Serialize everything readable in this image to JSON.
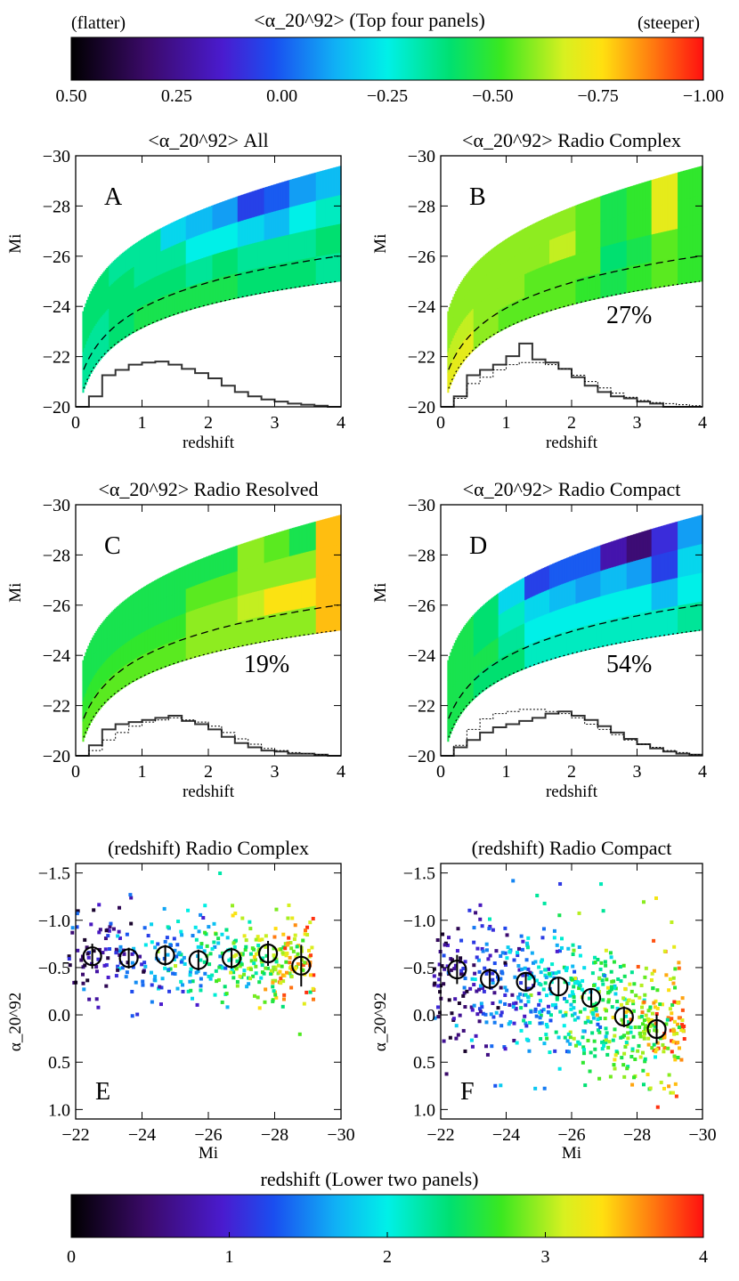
{
  "colorbar_top": {
    "title": "<α_20^92> (Top four panels)",
    "left_label": "(flatter)",
    "right_label": "(steeper)",
    "ticks": [
      "0.50",
      "0.25",
      "0.00",
      "−0.25",
      "−0.50",
      "−0.75",
      "−1.00"
    ],
    "range": [
      0.5,
      -1.0
    ]
  },
  "colorbar_bottom": {
    "title": "redshift  (Lower two panels)",
    "ticks": [
      "0",
      "1",
      "2",
      "3",
      "4"
    ],
    "range": [
      0,
      4
    ]
  },
  "top_panels_axes": {
    "xlabel": "redshift",
    "ylabel": "Mi",
    "xticks": [
      "0",
      "1",
      "2",
      "3",
      "4"
    ],
    "yticks": [
      "−30",
      "−28",
      "−26",
      "−24",
      "−22",
      "−20"
    ]
  },
  "bottom_panels_axes": {
    "xlabel": "Mi",
    "ylabel": "α_20^92",
    "xticks": [
      "−22",
      "−24",
      "−26",
      "−28",
      "−30"
    ],
    "yticks": [
      "−1.5",
      "−1.0",
      "−0.5",
      "0.0",
      "0.5",
      "1.0"
    ]
  },
  "chart_data": [
    {
      "type": "heatmap",
      "panel": "A",
      "title": "<α_20^92> All",
      "xlabel": "redshift",
      "ylabel": "Mi",
      "xlim": [
        0,
        4
      ],
      "ylim": [
        -20,
        -30
      ],
      "percent": "",
      "histogram": [
        0,
        0.1,
        0.3,
        0.35,
        0.4,
        0.42,
        0.43,
        0.4,
        0.36,
        0.32,
        0.27,
        0.2,
        0.14,
        0.1,
        0.07,
        0.05,
        0.03,
        0.02,
        0.01,
        0.0
      ],
      "hist_dotted": [],
      "column_alphas": [
        [
          -0.35,
          -0.35,
          -0.4,
          -0.4
        ],
        [
          -0.4,
          -0.4,
          -0.4,
          -0.35
        ],
        [
          -0.45,
          -0.4,
          -0.35,
          -0.35
        ],
        [
          -0.45,
          -0.4,
          -0.35,
          -0.2
        ],
        [
          -0.45,
          -0.35,
          -0.25,
          -0.15
        ],
        [
          -0.45,
          -0.4,
          -0.25,
          -0.1
        ],
        [
          -0.4,
          -0.35,
          -0.2,
          0.05
        ],
        [
          -0.4,
          -0.35,
          -0.15,
          0.0
        ],
        [
          -0.4,
          -0.35,
          -0.25,
          -0.1
        ],
        [
          -0.35,
          -0.4,
          -0.3,
          -0.15
        ]
      ]
    },
    {
      "type": "heatmap",
      "panel": "B",
      "title": "<α_20^92> Radio Complex",
      "xlabel": "redshift",
      "ylabel": "Mi",
      "xlim": [
        0,
        4
      ],
      "ylim": [
        -20,
        -30
      ],
      "percent": "27%",
      "histogram": [
        0,
        0.1,
        0.3,
        0.35,
        0.4,
        0.48,
        0.6,
        0.45,
        0.42,
        0.36,
        0.28,
        0.2,
        0.14,
        0.1,
        0.08,
        0.05,
        0.03,
        0.0,
        0.0,
        0.0
      ],
      "hist_dotted": [
        0,
        0.08,
        0.22,
        0.28,
        0.35,
        0.4,
        0.42,
        0.42,
        0.4,
        0.36,
        0.3,
        0.24,
        0.18,
        0.13,
        0.09,
        0.06,
        0.04,
        0.03,
        0.02,
        0.01
      ],
      "column_alphas": [
        [
          -0.7,
          -0.65,
          -0.6,
          -0.6
        ],
        [
          -0.6,
          -0.6,
          -0.6,
          -0.6
        ],
        [
          -0.55,
          -0.6,
          -0.6,
          -0.6
        ],
        [
          -0.55,
          -0.55,
          -0.6,
          -0.6
        ],
        [
          -0.55,
          -0.55,
          -0.65,
          -0.6
        ],
        [
          -0.5,
          -0.55,
          -0.55,
          -0.55
        ],
        [
          -0.45,
          -0.4,
          -0.45,
          -0.45
        ],
        [
          -0.5,
          -0.45,
          -0.5,
          -0.5
        ],
        [
          -0.55,
          -0.55,
          -0.7,
          -0.7
        ],
        [
          -0.5,
          -0.5,
          -0.5,
          -0.5
        ]
      ]
    },
    {
      "type": "heatmap",
      "panel": "C",
      "title": "<α_20^92> Radio Resolved",
      "xlabel": "redshift",
      "ylabel": "Mi",
      "xlim": [
        0,
        4
      ],
      "ylim": [
        -20,
        -30
      ],
      "percent": "19%",
      "histogram": [
        0,
        0.1,
        0.25,
        0.3,
        0.32,
        0.34,
        0.36,
        0.38,
        0.33,
        0.3,
        0.25,
        0.18,
        0.12,
        0.08,
        0.05,
        0.04,
        0.02,
        0.02,
        0.01,
        0.0
      ],
      "hist_dotted": [
        0,
        0.05,
        0.15,
        0.22,
        0.28,
        0.32,
        0.34,
        0.36,
        0.34,
        0.32,
        0.28,
        0.22,
        0.16,
        0.11,
        0.07,
        0.05,
        0.03,
        0.02,
        0.01,
        0.0
      ],
      "column_alphas": [
        [
          -0.55,
          -0.5,
          -0.45,
          -0.45
        ],
        [
          -0.55,
          -0.5,
          -0.45,
          -0.45
        ],
        [
          -0.55,
          -0.5,
          -0.45,
          -0.45
        ],
        [
          -0.55,
          -0.5,
          -0.45,
          -0.45
        ],
        [
          -0.6,
          -0.6,
          -0.55,
          -0.45
        ],
        [
          -0.6,
          -0.6,
          -0.55,
          -0.45
        ],
        [
          -0.6,
          -0.65,
          -0.6,
          -0.6
        ],
        [
          -0.6,
          -0.75,
          -0.6,
          -0.55
        ],
        [
          -0.6,
          -0.75,
          -0.6,
          -0.45
        ],
        [
          -0.8,
          -0.8,
          -0.8,
          -0.8
        ]
      ]
    },
    {
      "type": "heatmap",
      "panel": "D",
      "title": "<α_20^92> Radio Compact",
      "xlabel": "redshift",
      "ylabel": "Mi",
      "xlim": [
        0,
        4
      ],
      "ylim": [
        -20,
        -30
      ],
      "percent": "54%",
      "histogram": [
        0,
        0.08,
        0.15,
        0.22,
        0.27,
        0.3,
        0.33,
        0.36,
        0.4,
        0.42,
        0.38,
        0.34,
        0.28,
        0.22,
        0.16,
        0.11,
        0.07,
        0.04,
        0.02,
        0.01
      ],
      "hist_dotted": [
        0,
        0.1,
        0.25,
        0.35,
        0.4,
        0.42,
        0.44,
        0.44,
        0.42,
        0.4,
        0.36,
        0.3,
        0.25,
        0.2,
        0.15,
        0.11,
        0.08,
        0.05,
        0.03,
        0.01
      ],
      "column_alphas": [
        [
          -0.45,
          -0.45,
          -0.45,
          -0.45
        ],
        [
          -0.4,
          -0.45,
          -0.4,
          -0.4
        ],
        [
          -0.4,
          -0.35,
          -0.3,
          -0.2
        ],
        [
          -0.3,
          -0.25,
          -0.2,
          0.05
        ],
        [
          -0.3,
          -0.25,
          -0.15,
          0.0
        ],
        [
          -0.3,
          -0.25,
          -0.1,
          0.0
        ],
        [
          -0.3,
          -0.25,
          -0.15,
          0.2
        ],
        [
          -0.3,
          -0.25,
          -0.1,
          0.3
        ],
        [
          -0.3,
          -0.15,
          0.05,
          0.1
        ],
        [
          -0.35,
          -0.25,
          -0.2,
          -0.1
        ]
      ]
    },
    {
      "type": "scatter",
      "panel": "E",
      "title": "(redshift) Radio Complex",
      "xlabel": "Mi",
      "ylabel": "α_20^92",
      "xlim": [
        -22,
        -30
      ],
      "ylim": [
        1.1,
        -1.6
      ],
      "binned_means": [
        {
          "x": -22.5,
          "y": -0.62,
          "err": 0.06
        },
        {
          "x": -23.6,
          "y": -0.6,
          "err": 0.05
        },
        {
          "x": -24.7,
          "y": -0.63,
          "err": 0.05
        },
        {
          "x": -25.7,
          "y": -0.58,
          "err": 0.05
        },
        {
          "x": -26.7,
          "y": -0.6,
          "err": 0.05
        },
        {
          "x": -27.8,
          "y": -0.65,
          "err": 0.06
        },
        {
          "x": -28.8,
          "y": -0.52,
          "err": 0.1
        }
      ],
      "scatter": {
        "n": 420,
        "seed": 7,
        "mi_range": [
          -21.8,
          -29.2
        ],
        "alpha_center": -0.6,
        "alpha_spread": 0.25
      }
    },
    {
      "type": "scatter",
      "panel": "F",
      "title": "(redshift) Radio Compact",
      "xlabel": "Mi",
      "ylabel": "α_20^92",
      "xlim": [
        -22,
        -30
      ],
      "ylim": [
        1.1,
        -1.6
      ],
      "binned_means": [
        {
          "x": -22.5,
          "y": -0.48,
          "err": 0.07
        },
        {
          "x": -23.5,
          "y": -0.38,
          "err": 0.05
        },
        {
          "x": -24.6,
          "y": -0.35,
          "err": 0.04
        },
        {
          "x": -25.6,
          "y": -0.3,
          "err": 0.04
        },
        {
          "x": -26.6,
          "y": -0.18,
          "err": 0.04
        },
        {
          "x": -27.6,
          "y": 0.02,
          "err": 0.05
        },
        {
          "x": -28.6,
          "y": 0.15,
          "err": 0.07
        }
      ],
      "scatter": {
        "n": 700,
        "seed": 13,
        "mi_range": [
          -21.8,
          -29.5
        ],
        "alpha_center": -0.3,
        "alpha_spread": 0.38
      }
    }
  ]
}
